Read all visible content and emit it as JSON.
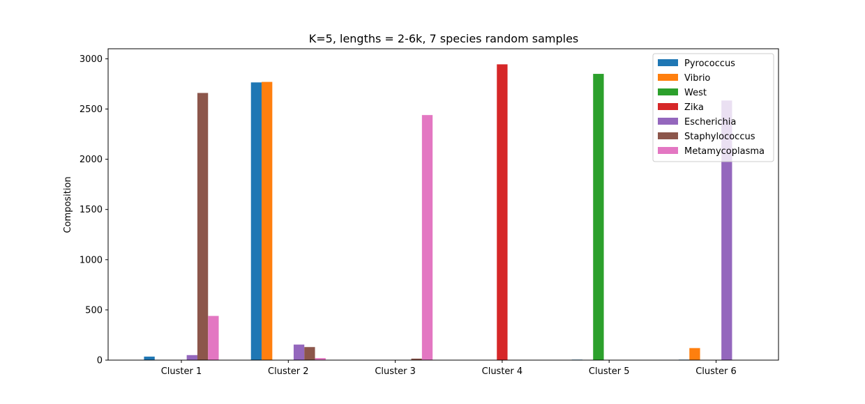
{
  "chart_data": {
    "type": "bar",
    "title": "K=5, lengths = 2-6k, 7 species random samples",
    "xlabel": "",
    "ylabel": "Composition",
    "ylim": [
      0,
      3100
    ],
    "yticks": [
      0,
      500,
      1000,
      1500,
      2000,
      2500,
      3000
    ],
    "categories": [
      "Cluster 1",
      "Cluster 2",
      "Cluster 3",
      "Cluster 4",
      "Cluster 5",
      "Cluster 6"
    ],
    "grid": false,
    "legend_position": "top-right",
    "series": [
      {
        "name": "Pyrococcus",
        "color": "#1f77b4",
        "values": [
          35,
          2765,
          0,
          0,
          5,
          5
        ]
      },
      {
        "name": "Vibrio",
        "color": "#ff7f0e",
        "values": [
          0,
          2770,
          0,
          0,
          0,
          120
        ]
      },
      {
        "name": "West",
        "color": "#2ca02c",
        "values": [
          0,
          0,
          0,
          0,
          2850,
          0
        ]
      },
      {
        "name": "Zika",
        "color": "#d62728",
        "values": [
          0,
          0,
          0,
          2945,
          0,
          0
        ]
      },
      {
        "name": "Escherichia",
        "color": "#9467bd",
        "values": [
          50,
          155,
          0,
          0,
          0,
          2585
        ]
      },
      {
        "name": "Staphylococcus",
        "color": "#8c564b",
        "values": [
          2660,
          130,
          15,
          0,
          0,
          0
        ]
      },
      {
        "name": "Metamycoplasma",
        "color": "#e377c2",
        "values": [
          440,
          20,
          2440,
          0,
          0,
          0
        ]
      }
    ]
  }
}
